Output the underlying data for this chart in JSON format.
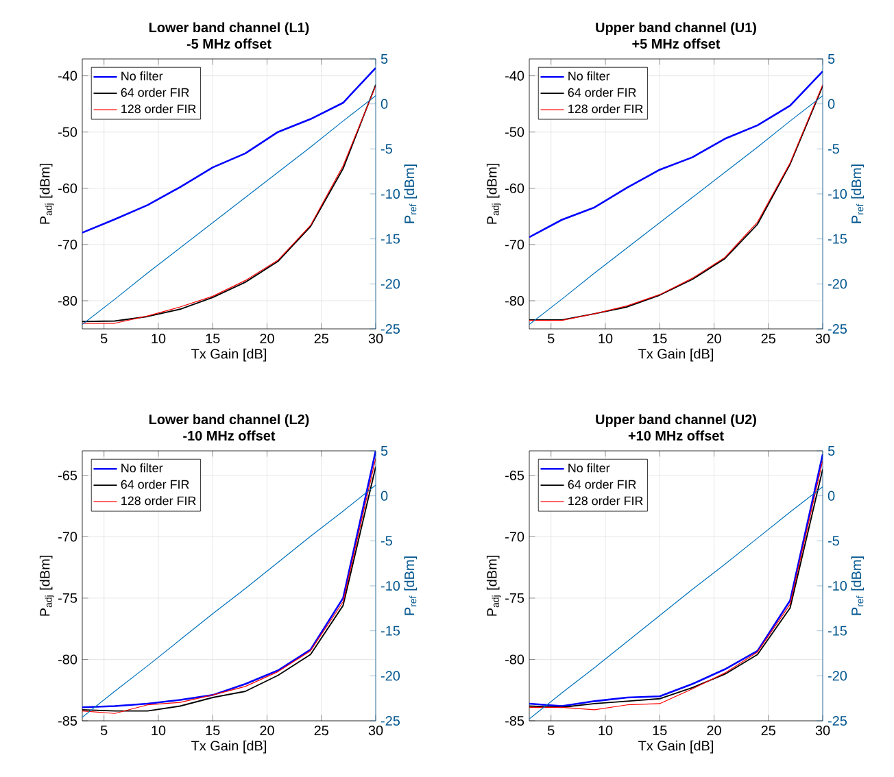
{
  "chart_data": [
    {
      "type": "line",
      "title": "Lower band channel (L1)",
      "subtitle": "-5 MHz offset",
      "xlabel": "Tx Gain [dB]",
      "ylabel": "P$_{adj}$ [dBm]",
      "y2label": "P$_{ref}$ [dBm]",
      "x": [
        3,
        6,
        9,
        12,
        15,
        18,
        21,
        24,
        27,
        30
      ],
      "series": [
        {
          "name": "No filter",
          "color": "#0000ff",
          "values": [
            -67.9,
            -65.5,
            -63.0,
            -59.8,
            -56.3,
            -53.8,
            -50.0,
            -47.7,
            -44.8,
            -38.6
          ]
        },
        {
          "name": "64 order FIR",
          "color": "#000000",
          "values": [
            -83.7,
            -83.6,
            -82.8,
            -81.5,
            -79.4,
            -76.7,
            -73.0,
            -66.8,
            -56.5,
            -41.6
          ]
        },
        {
          "name": "128 order FIR",
          "color": "#ff0000",
          "values": [
            -84.0,
            -84.0,
            -82.7,
            -81.1,
            -79.2,
            -76.4,
            -72.8,
            -66.6,
            -56.0,
            -41.8
          ]
        },
        {
          "color": "#0072bd",
          "axis": "y2",
          "values": [
            -24.5,
            -21.7,
            -18.8,
            -16.0,
            -13.2,
            -10.4,
            -7.6,
            -4.8,
            -1.9,
            0.9
          ]
        }
      ],
      "xlim": [
        3,
        30
      ],
      "xticks": [
        5,
        10,
        15,
        20,
        25,
        30
      ],
      "ylim": [
        -85,
        -37
      ],
      "yticks": [
        -80,
        -70,
        -60,
        -50,
        -40
      ],
      "y2lim": [
        -25,
        5
      ],
      "y2ticks": [
        -25,
        -20,
        -15,
        -10,
        -5,
        0,
        5
      ],
      "grid": true,
      "legend": "top left"
    },
    {
      "type": "line",
      "title": "Upper band channel (U1)",
      "subtitle": "+5 MHz offset",
      "xlabel": "Tx Gain [dB]",
      "ylabel": "P$_{adj}$ [dBm]",
      "y2label": "P$_{ref}$ [dBm]",
      "x": [
        3,
        6,
        9,
        12,
        15,
        18,
        21,
        24,
        27,
        30
      ],
      "series": [
        {
          "name": "No filter",
          "color": "#0000ff",
          "values": [
            -68.7,
            -65.6,
            -63.4,
            -59.9,
            -56.7,
            -54.5,
            -51.2,
            -48.8,
            -45.3,
            -39.2
          ]
        },
        {
          "name": "64 order FIR",
          "color": "#000000",
          "values": [
            -83.4,
            -83.4,
            -82.3,
            -81.1,
            -79.0,
            -76.2,
            -72.5,
            -66.4,
            -55.7,
            -41.8
          ]
        },
        {
          "name": "128 order FIR",
          "color": "#ff0000",
          "values": [
            -83.5,
            -83.5,
            -82.3,
            -80.9,
            -78.9,
            -76.0,
            -72.3,
            -66.0,
            -55.5,
            -41.6
          ]
        },
        {
          "color": "#0072bd",
          "axis": "y2",
          "values": [
            -24.5,
            -21.7,
            -18.8,
            -16.0,
            -13.2,
            -10.4,
            -7.6,
            -4.8,
            -1.9,
            0.9
          ]
        }
      ],
      "xlim": [
        3,
        30
      ],
      "xticks": [
        5,
        10,
        15,
        20,
        25,
        30
      ],
      "ylim": [
        -85,
        -37
      ],
      "yticks": [
        -80,
        -70,
        -60,
        -50,
        -40
      ],
      "y2lim": [
        -25,
        5
      ],
      "y2ticks": [
        -25,
        -20,
        -15,
        -10,
        -5,
        0,
        5
      ],
      "grid": true,
      "legend": "top left"
    },
    {
      "type": "line",
      "title": "Lower band channel (L2)",
      "subtitle": "-10 MHz offset",
      "xlabel": "Tx Gain [dB]",
      "ylabel": "P$_{adj}$ [dBm]",
      "y2label": "P$_{ref}$ [dBm]",
      "x": [
        3,
        6,
        9,
        12,
        15,
        18,
        21,
        24,
        27,
        30
      ],
      "series": [
        {
          "name": "No filter",
          "color": "#0000ff",
          "values": [
            -83.9,
            -83.8,
            -83.6,
            -83.3,
            -82.9,
            -82.0,
            -80.9,
            -79.2,
            -75.0,
            -63.0
          ]
        },
        {
          "name": "64 order FIR",
          "color": "#000000",
          "values": [
            -84.1,
            -84.2,
            -84.2,
            -83.8,
            -83.1,
            -82.6,
            -81.3,
            -79.6,
            -75.6,
            -64.3
          ]
        },
        {
          "name": "128 order FIR",
          "color": "#ff0000",
          "values": [
            -84.2,
            -84.4,
            -83.7,
            -83.5,
            -82.9,
            -82.2,
            -81.0,
            -79.3,
            -75.3,
            -63.6
          ]
        },
        {
          "color": "#0072bd",
          "axis": "y2",
          "values": [
            -24.6,
            -21.7,
            -18.9,
            -16.0,
            -13.1,
            -10.3,
            -7.4,
            -4.5,
            -1.7,
            1.2
          ]
        }
      ],
      "xlim": [
        3,
        30
      ],
      "xticks": [
        5,
        10,
        15,
        20,
        25,
        30
      ],
      "ylim": [
        -85,
        -63
      ],
      "yticks": [
        -85,
        -80,
        -75,
        -70,
        -65
      ],
      "y2lim": [
        -25,
        5
      ],
      "y2ticks": [
        -25,
        -20,
        -15,
        -10,
        -5,
        0,
        5
      ],
      "grid": true,
      "legend": "top left"
    },
    {
      "type": "line",
      "title": "Upper band channel (U2)",
      "subtitle": "+10 MHz offset",
      "xlabel": "Tx Gain [dB]",
      "ylabel": "P$_{adj}$ [dBm]",
      "y2label": "P$_{ref}$ [dBm]",
      "x": [
        3,
        6,
        9,
        12,
        15,
        18,
        21,
        24,
        27,
        30
      ],
      "series": [
        {
          "name": "No filter",
          "color": "#0000ff",
          "values": [
            -83.6,
            -83.8,
            -83.4,
            -83.1,
            -83.0,
            -82.0,
            -80.8,
            -79.3,
            -75.2,
            -63.3
          ]
        },
        {
          "name": "64 order FIR",
          "color": "#000000",
          "values": [
            -83.8,
            -83.9,
            -83.6,
            -83.4,
            -83.2,
            -82.3,
            -81.2,
            -79.6,
            -75.8,
            -64.5
          ]
        },
        {
          "name": "128 order FIR",
          "color": "#ff0000",
          "values": [
            -83.9,
            -83.9,
            -84.1,
            -83.7,
            -83.6,
            -82.4,
            -81.1,
            -79.4,
            -75.5,
            -63.8
          ]
        },
        {
          "color": "#0072bd",
          "axis": "y2",
          "values": [
            -24.8,
            -21.9,
            -19.1,
            -16.2,
            -13.3,
            -10.4,
            -7.6,
            -4.7,
            -1.8,
            1.0
          ]
        }
      ],
      "xlim": [
        3,
        30
      ],
      "xticks": [
        5,
        10,
        15,
        20,
        25,
        30
      ],
      "ylim": [
        -85,
        -63
      ],
      "yticks": [
        -85,
        -80,
        -75,
        -70,
        -65
      ],
      "y2lim": [
        -25,
        5
      ],
      "y2ticks": [
        -25,
        -20,
        -15,
        -10,
        -5,
        0,
        5
      ],
      "grid": true,
      "legend": "top left"
    }
  ]
}
